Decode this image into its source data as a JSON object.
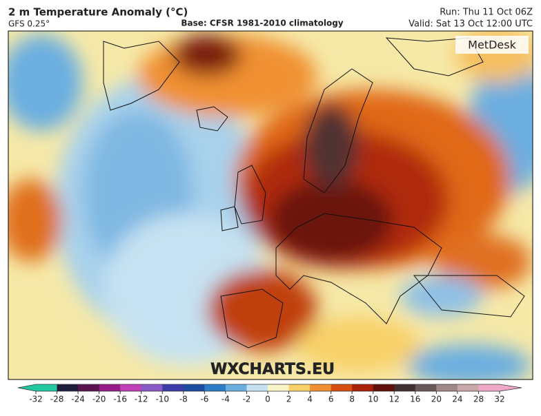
{
  "header": {
    "title": "2 m Temperature Anomaly (°C)",
    "subtitle": "GFS 0.25°",
    "base": "Base: CFSR 1981-2010 climatology",
    "run": "Run: Thu 11 Oct 06Z",
    "valid": "Valid: Sat 13 Oct 12:00 UTC"
  },
  "map": {
    "logo": "MetDesk",
    "watermark": "WXCHARTS.EU"
  },
  "colorbar": {
    "ticks": [
      -32,
      -28,
      -24,
      -20,
      -16,
      -12,
      -10,
      -8,
      -6,
      -4,
      -2,
      0,
      2,
      4,
      6,
      8,
      10,
      12,
      16,
      20,
      24,
      28,
      32
    ],
    "colors": [
      "#22c9a0",
      "#1e1e3c",
      "#5a1450",
      "#981c88",
      "#c040b8",
      "#8a5ac8",
      "#3c3ca8",
      "#1c4ca0",
      "#2c7cc8",
      "#6aaee0",
      "#c6e2f2",
      "#f8f4c8",
      "#f8d068",
      "#f09030",
      "#d85010",
      "#a82008",
      "#601008",
      "#403030",
      "#6a5858",
      "#a08888",
      "#c8a8a8",
      "#f0a8c8"
    ]
  }
}
